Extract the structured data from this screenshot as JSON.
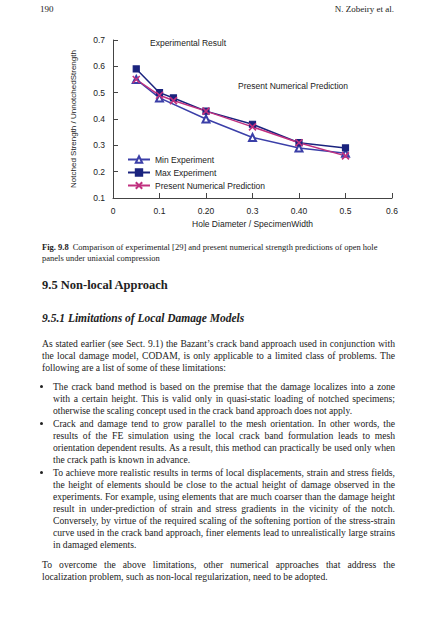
{
  "header": {
    "page": "190",
    "running_head": "N. Zobeiry et al."
  },
  "chart_data": {
    "type": "line",
    "xlabel": "Hole Diameter / SpecimenWidth",
    "ylabel": "Notched Strength / UnnotchedStrength",
    "xlim": [
      0,
      0.6
    ],
    "xticks": [
      0,
      0.1,
      {
        "value": 0.2,
        "label": "0.20"
      },
      0.3,
      {
        "value": 0.4,
        "label": "0.40"
      },
      0.5,
      0.6
    ],
    "ylim": [
      0.1,
      0.7
    ],
    "yticks": [
      0.1,
      0.2,
      0.3,
      0.4,
      0.5,
      0.6,
      0.7
    ],
    "grid": false,
    "legend": "lower left",
    "annotations": [
      "Experimental Result",
      "Present Numerical Prediction"
    ],
    "series": [
      {
        "name": "Min Experiment",
        "color": "#3b3fa8",
        "marker": "triangle",
        "x": [
          0.05,
          0.1,
          0.2,
          0.3,
          0.4,
          0.5
        ],
        "values": [
          0.55,
          0.48,
          0.4,
          0.33,
          0.29,
          0.27
        ]
      },
      {
        "name": "Max Experiment",
        "color": "#1a237e",
        "marker": "square",
        "x": [
          0.05,
          0.1,
          0.13,
          0.2,
          0.3,
          0.4,
          0.5
        ],
        "values": [
          0.59,
          0.5,
          0.48,
          0.43,
          0.38,
          0.31,
          0.29
        ]
      },
      {
        "name": "Present Numerical Prediction",
        "color": "#c0307f",
        "marker": "x",
        "x": [
          0.05,
          0.1,
          0.13,
          0.2,
          0.3,
          0.4,
          0.5
        ],
        "values": [
          0.55,
          0.49,
          0.47,
          0.43,
          0.37,
          0.31,
          0.26
        ]
      }
    ]
  },
  "caption": {
    "label": "Fig. 9.8",
    "text": "Comparison of experimental [29] and present numerical strength predictions of open hole panels under uniaxial compression"
  },
  "section": "9.5 Non-local Approach",
  "subsection": "9.5.1 Limitations of Local Damage Models",
  "intro": "As stated earlier (see Sect. 9.1) the Bazant’s crack band approach used in conjunction with the local damage model, CODAM, is only applicable to a limited class of problems. The following are a list of some of these limitations:",
  "bullets": [
    "The crack band method is based on the premise that the damage localizes into a zone with a certain height. This is valid only in quasi-static loading of notched specimens; otherwise the scaling concept used in the crack band approach does not apply.",
    "Crack and damage tend to grow parallel to the mesh orientation. In other words, the results of the FE simulation using the local crack band formulation leads to mesh orientation dependent results. As a result, this method can practically be used only when the crack path is known in advance.",
    "To achieve more realistic results in terms of local displacements, strain and stress fields, the height of elements should be close to the actual height of damage observed in the experiments. For example, using elements that are much coarser than the damage height result in under-prediction of strain and stress gradients in the vicinity of the notch. Conversely, by virtue of the required scaling of the softening portion of the stress-strain curve used in the crack band approach, finer elements lead to unrealistically large strains in damaged elements."
  ],
  "closing": "To overcome the above limitations, other numerical approaches that address the localization problem, such as non-local regularization, need to be adopted."
}
